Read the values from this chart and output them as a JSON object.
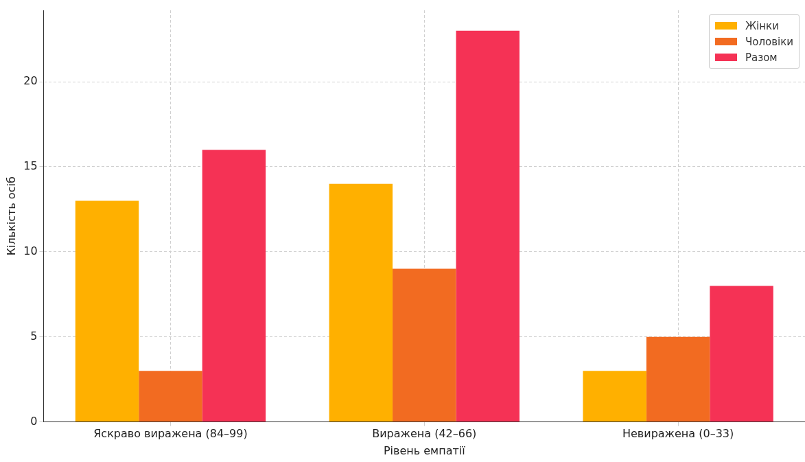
{
  "chart_data": {
    "type": "bar",
    "xlabel": "Рівень емпатії",
    "ylabel": "Кількість осіб",
    "categories": [
      "Яскраво виражена (84–99)",
      "Виражена (42–66)",
      "Невиражена (0–33)"
    ],
    "series": [
      {
        "name": "Жінки",
        "color": "#ffb000",
        "values": [
          13,
          14,
          3
        ]
      },
      {
        "name": "Чоловіки",
        "color": "#f26b21",
        "values": [
          3,
          9,
          5
        ]
      },
      {
        "name": "Разом",
        "color": "#f53255",
        "values": [
          16,
          23,
          8
        ]
      }
    ],
    "ylim": [
      0,
      24.2
    ],
    "yticks": [
      0,
      5,
      10,
      15,
      20
    ],
    "grid": true,
    "legend": "top right"
  }
}
